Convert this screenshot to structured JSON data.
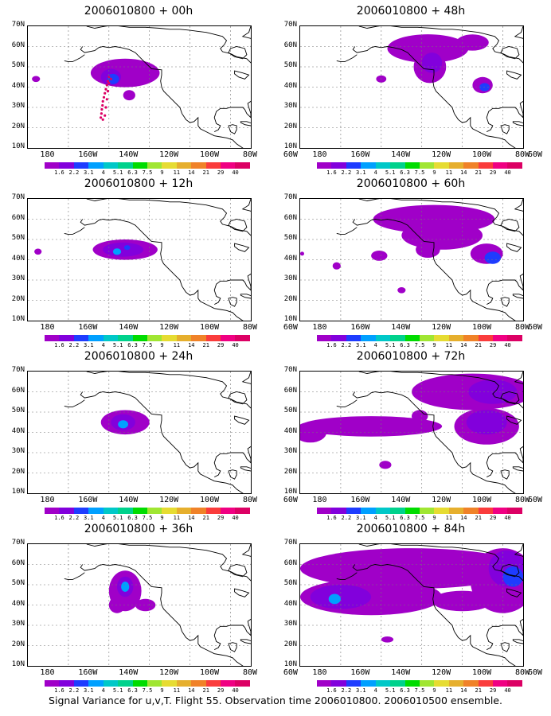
{
  "panels": [
    {
      "title": "2006010800 + 00h"
    },
    {
      "title": "2006010800 + 48h"
    },
    {
      "title": "2006010800 + 12h"
    },
    {
      "title": "2006010800 + 60h"
    },
    {
      "title": "2006010800 + 24h"
    },
    {
      "title": "2006010800 + 72h"
    },
    {
      "title": "2006010800 + 36h"
    },
    {
      "title": "2006010800 + 84h"
    }
  ],
  "y_tick_labels": [
    "70N",
    "60N",
    "50N",
    "40N",
    "30N",
    "20N",
    "10N"
  ],
  "x_tick_labels": [
    "180",
    "160W",
    "140W",
    "120W",
    "100W",
    "80W",
    "60W"
  ],
  "colorbar": {
    "labels": [
      "1.6",
      "2.2",
      "3.1",
      "4",
      "5.1",
      "6.3",
      "7.5",
      "9",
      "11",
      "14",
      "21",
      "29",
      "40"
    ],
    "colors": [
      "#a000c8",
      "#8200dc",
      "#1e3cff",
      "#00a0ff",
      "#00c8c8",
      "#00d28c",
      "#00dc00",
      "#a0e632",
      "#e6dc32",
      "#e6af2d",
      "#f08228",
      "#fa3c3c",
      "#f00082",
      "#dc0064"
    ]
  },
  "caption": "Signal Variance for u,v,T. Flight 55. Observation time 2006010800. 2006010500 ensemble.",
  "fill_colors": {
    "light_purple": "#a000c8",
    "dark_purple": "#8200dc",
    "blue": "#1e3cff",
    "cyan": "#00a0ff",
    "track": "#dc0064"
  }
}
